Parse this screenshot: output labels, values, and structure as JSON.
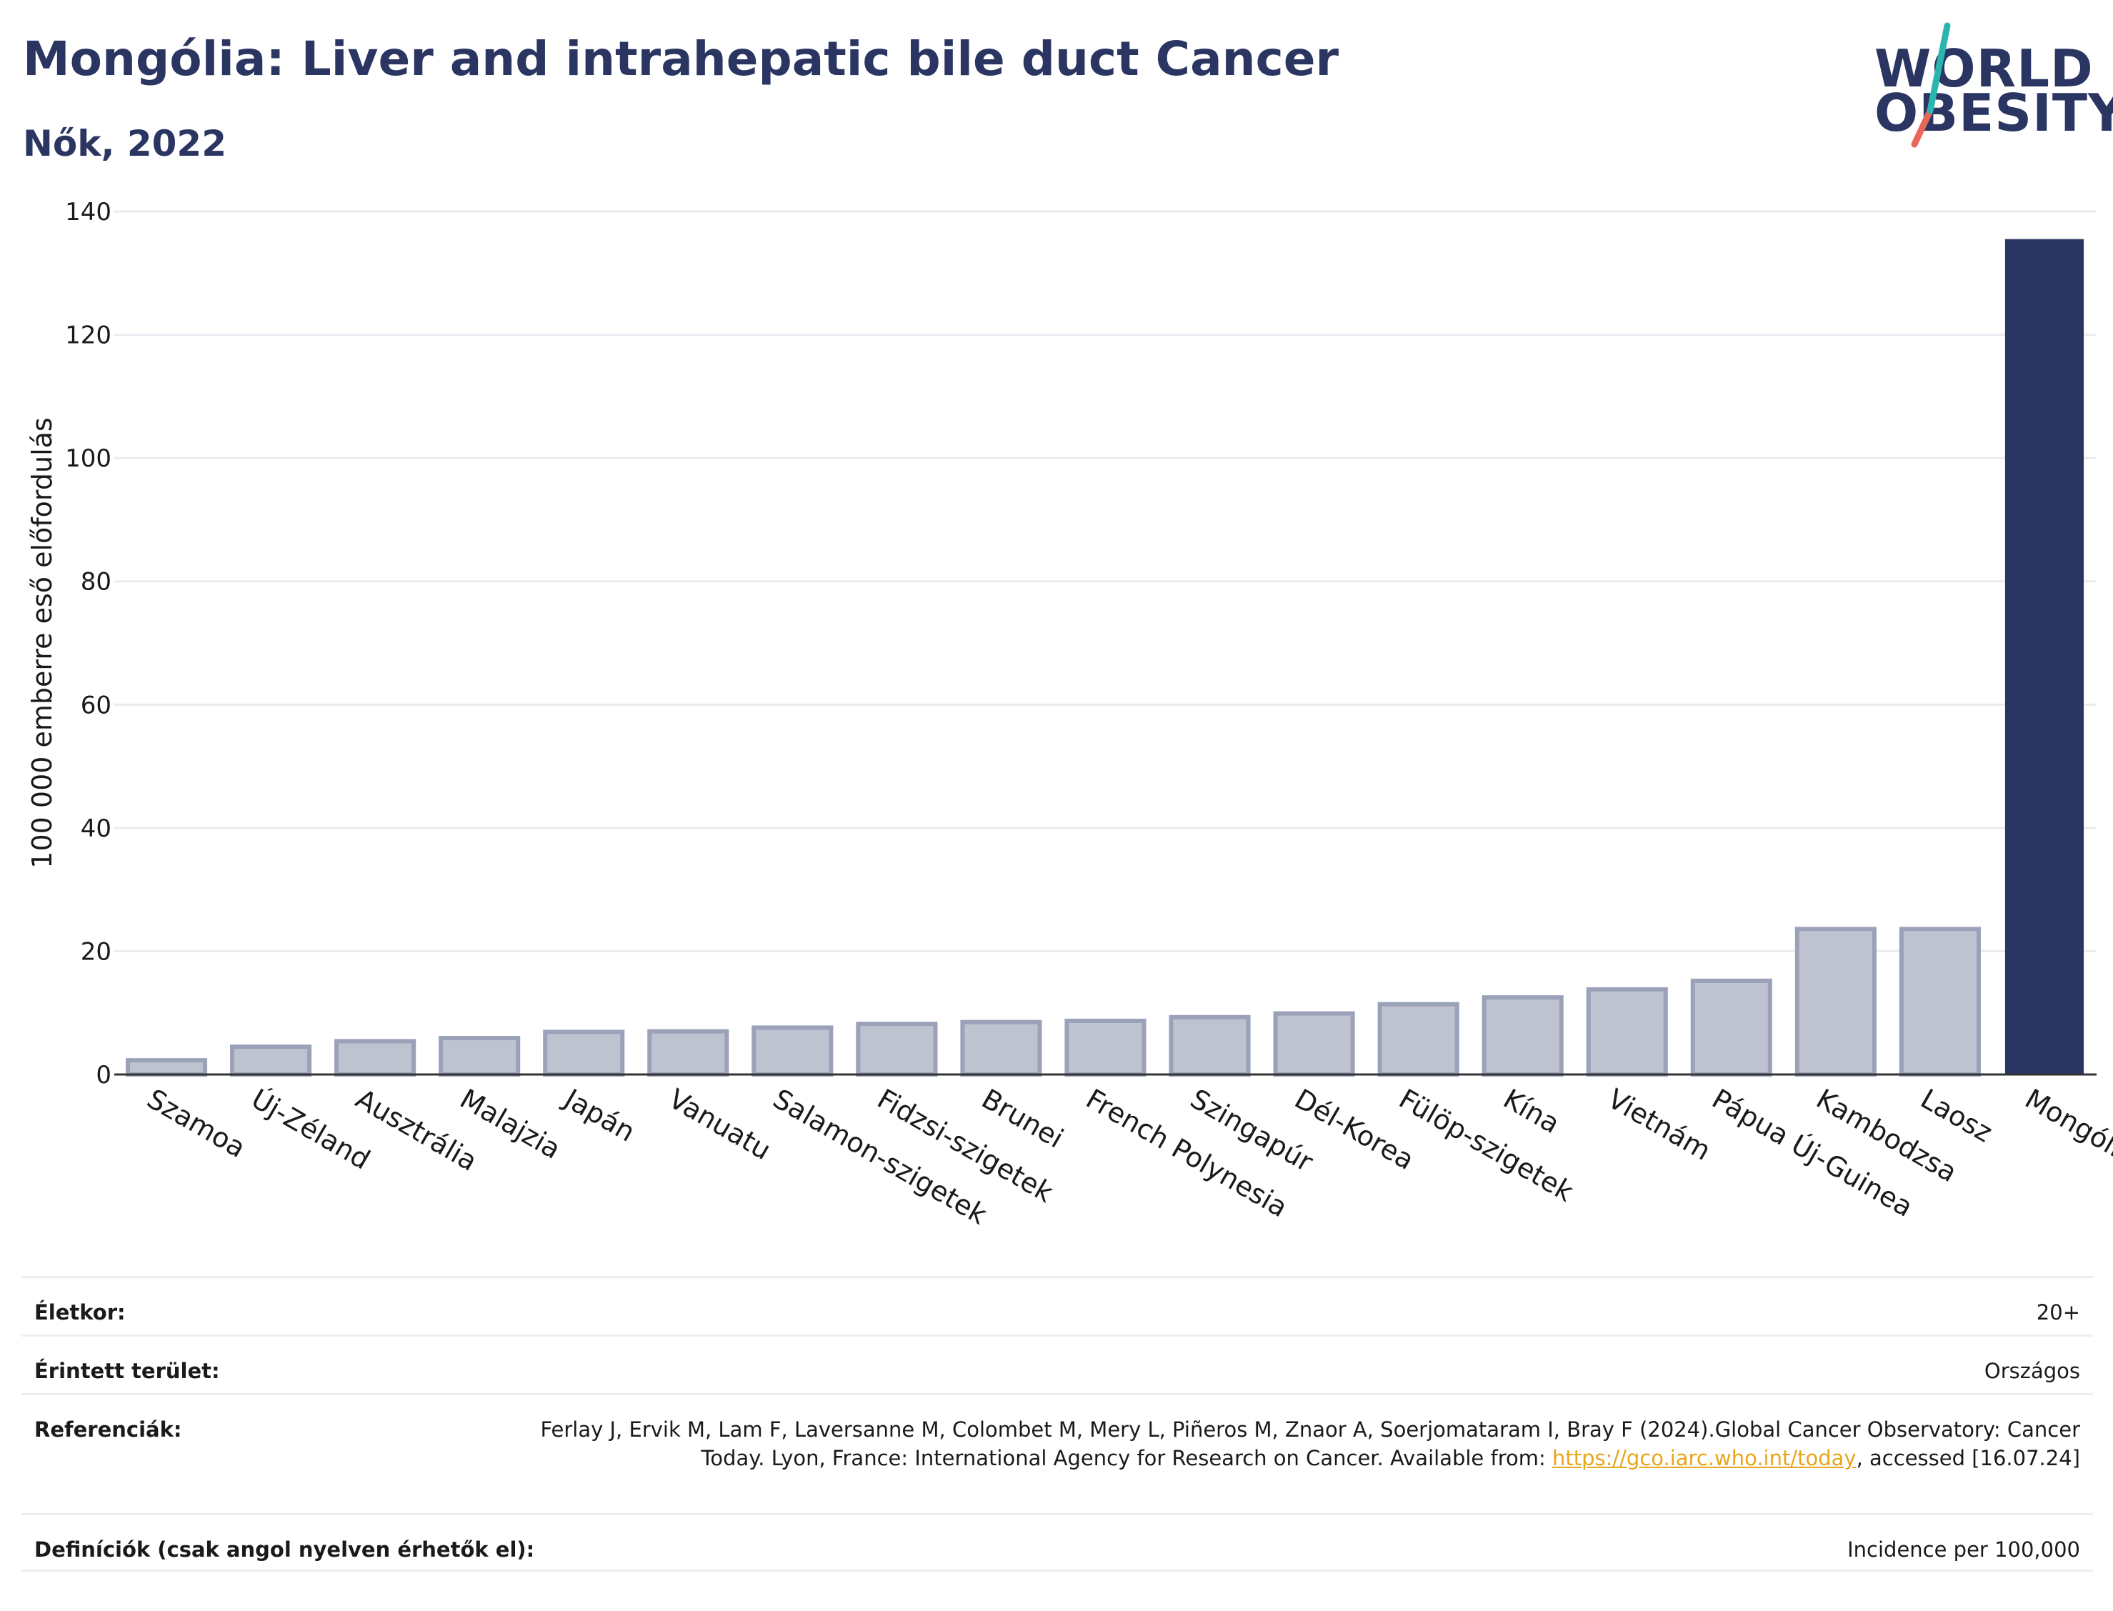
{
  "header": {
    "title": "Mongólia: Liver and intrahepatic bile duct Cancer",
    "subtitle": "Nők, 2022"
  },
  "logo": {
    "line1": "WORLD",
    "line2": "OBESITY",
    "colors": {
      "text": "#2a3561",
      "slash_top": "#2bb5b1",
      "slash_bottom": "#e8675a"
    }
  },
  "chart_data": {
    "type": "bar",
    "title": "",
    "xlabel": "",
    "ylabel": "100 000 emberre eső előfordulás",
    "ylim": [
      0,
      140
    ],
    "yticks": [
      0,
      20,
      40,
      60,
      80,
      100,
      120,
      140
    ],
    "grid": true,
    "categories": [
      "Szamoa",
      "Új-Zéland",
      "Ausztrália",
      "Malajzia",
      "Japán",
      "Vanuatu",
      "Salamon-szigetek",
      "Fidzsi-szigetek",
      "Brunei",
      "French Polynesia",
      "Szingapúr",
      "Dél-Korea",
      "Fülöp-szigetek",
      "Kína",
      "Vietnám",
      "Pápua Új-Guinea",
      "Kambodzsa",
      "Laosz",
      "Mongólia"
    ],
    "values": [
      2.3,
      4.5,
      5.4,
      5.9,
      6.9,
      7.0,
      7.6,
      8.2,
      8.5,
      8.7,
      9.3,
      9.9,
      11.4,
      12.5,
      13.8,
      15.2,
      23.6,
      23.6,
      135.4
    ],
    "highlight": "Mongólia",
    "colors": {
      "bar": "#bfc3d0",
      "bar_edge": "#9aa1b8",
      "highlight": "#2a3561",
      "grid": "#e9ebf0",
      "axis": "#333333"
    }
  },
  "info": {
    "age_label": "Életkor:",
    "age_value": "20+",
    "area_label": "Érintett terület:",
    "area_value": "Országos",
    "ref_label": "Referenciák:",
    "ref_text_1": "Ferlay J, Ervik M, Lam F, Laversanne M, Colombet M, Mery L, Piñeros M, Znaor A, Soerjomataram I, Bray F (2024).Global Cancer Observatory: Cancer Today. Lyon, France: International Agency for Research on Cancer. Available from: ",
    "ref_link": "https://gco.iarc.who.int/today",
    "ref_text_2": ", accessed [16.07.24]",
    "def_label": "Definíciók (csak angol nyelven érhetők el):",
    "def_value": "Incidence per 100,000"
  }
}
